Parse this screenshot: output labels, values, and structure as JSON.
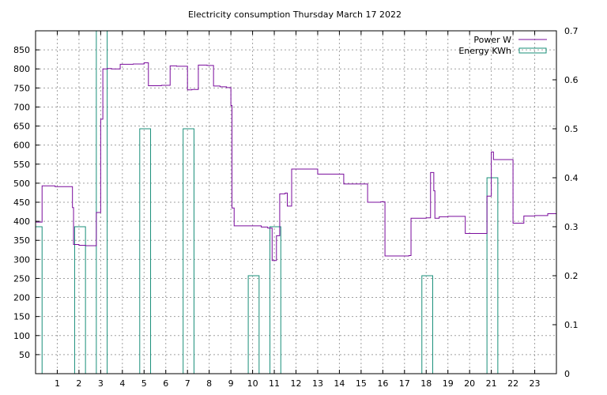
{
  "chart_data": {
    "type": "line",
    "title": "Electricity consumption Thursday March 17 2022",
    "xlabel": "",
    "ylabel": "",
    "y2label": "",
    "xlim": [
      0,
      24
    ],
    "ylim": [
      0,
      900
    ],
    "y2lim": [
      0,
      0.7
    ],
    "x_ticks": [
      1,
      2,
      3,
      4,
      5,
      6,
      7,
      8,
      9,
      10,
      11,
      12,
      13,
      14,
      15,
      16,
      17,
      18,
      19,
      20,
      21,
      22,
      23
    ],
    "y_ticks": [
      50,
      100,
      150,
      200,
      250,
      300,
      350,
      400,
      450,
      500,
      550,
      600,
      650,
      700,
      750,
      800,
      850
    ],
    "y2_ticks": [
      0,
      0.1,
      0.2,
      0.3,
      0.4,
      0.5,
      0.6,
      0.7
    ],
    "grid": true,
    "legend_position": "top-right",
    "series": [
      {
        "name": "Power W",
        "color": "#7a0c9c",
        "axis": "left",
        "style": "step",
        "x": [
          0.0,
          0.3,
          0.9,
          1.7,
          1.75,
          2.0,
          2.3,
          2.8,
          3.0,
          3.1,
          3.3,
          3.5,
          3.9,
          4.5,
          5.0,
          5.2,
          5.8,
          6.2,
          6.5,
          7.0,
          7.2,
          7.5,
          7.9,
          8.2,
          8.5,
          8.8,
          9.0,
          9.05,
          9.15,
          10.3,
          10.4,
          10.7,
          10.9,
          11.1,
          11.25,
          11.5,
          11.6,
          11.8,
          12.0,
          12.5,
          13.0,
          13.5,
          13.8,
          14.2,
          14.6,
          15.0,
          15.3,
          15.6,
          15.9,
          16.1,
          16.4,
          16.8,
          17.2,
          17.3,
          17.7,
          18.0,
          18.2,
          18.35,
          18.4,
          18.6,
          19.0,
          19.3,
          19.6,
          19.8,
          20.2,
          20.6,
          20.8,
          21.0,
          21.1,
          21.5,
          21.8,
          22.0,
          22.2,
          22.5,
          22.8,
          23.0,
          23.4,
          23.6
        ],
        "values": [
          398,
          493,
          491,
          436,
          339,
          337,
          336,
          423,
          668,
          800,
          801,
          800,
          812,
          813,
          816,
          756,
          757,
          808,
          807,
          745,
          746,
          810,
          809,
          755,
          753,
          751,
          704,
          435,
          388,
          388,
          385,
          382,
          297,
          362,
          472,
          474,
          440,
          537,
          537,
          537,
          524,
          524,
          524,
          498,
          498,
          498,
          450,
          450,
          451,
          309,
          309,
          309,
          310,
          408,
          408,
          409,
          528,
          480,
          408,
          412,
          413,
          413,
          413,
          368,
          368,
          368,
          466,
          582,
          562,
          562,
          562,
          395,
          395,
          414,
          414,
          415,
          415,
          420
        ]
      },
      {
        "name": "Energy KWh",
        "color": "#1a8f7a",
        "axis": "right",
        "style": "bars",
        "bars": [
          {
            "x0": -0.3,
            "x1": 0.3,
            "value": 0.3
          },
          {
            "x0": 1.8,
            "x1": 2.3,
            "value": 0.3
          },
          {
            "x0": 2.8,
            "x1": 3.3,
            "value": 0.7
          },
          {
            "x0": 4.8,
            "x1": 5.3,
            "value": 0.5
          },
          {
            "x0": 6.8,
            "x1": 7.3,
            "value": 0.5
          },
          {
            "x0": 9.8,
            "x1": 10.3,
            "value": 0.2
          },
          {
            "x0": 10.8,
            "x1": 11.3,
            "value": 0.3
          },
          {
            "x0": 17.8,
            "x1": 18.3,
            "value": 0.2
          },
          {
            "x0": 20.8,
            "x1": 21.3,
            "value": 0.4
          }
        ]
      }
    ]
  }
}
